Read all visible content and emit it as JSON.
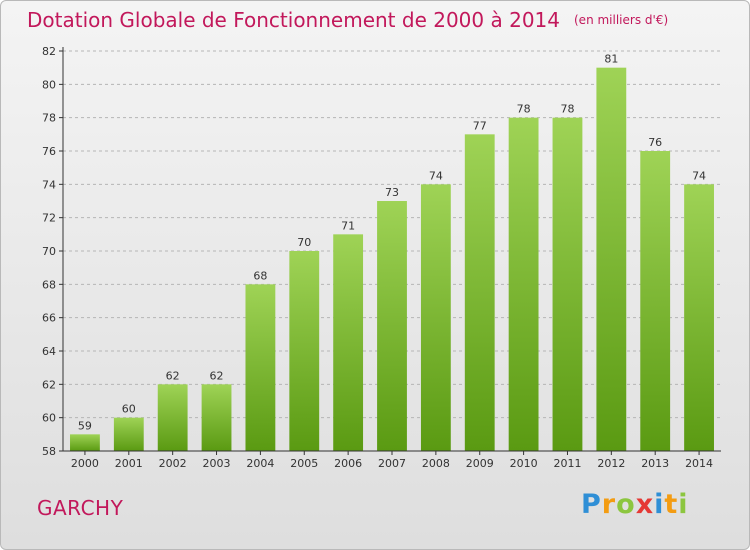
{
  "header": {
    "title": "Dotation Globale de Fonctionnement de 2000 à 2014",
    "subtitle": "(en milliers d'€)"
  },
  "footer": {
    "commune": "GARCHY",
    "brand": [
      "P",
      "r",
      "o",
      "x",
      "i",
      "t",
      "i"
    ]
  },
  "colors": {
    "title": "#c2185b",
    "bar_light": "#9fd356",
    "bar_dark": "#5a9a12",
    "axis": "#333333"
  },
  "chart_data": {
    "type": "bar",
    "categories": [
      "2000",
      "2001",
      "2002",
      "2003",
      "2004",
      "2005",
      "2006",
      "2007",
      "2008",
      "2009",
      "2010",
      "2011",
      "2012",
      "2013",
      "2014"
    ],
    "values": [
      59,
      60,
      62,
      62,
      68,
      70,
      71,
      73,
      74,
      77,
      78,
      78,
      81,
      76,
      74
    ],
    "ylim": [
      58,
      82
    ],
    "yticks": [
      58,
      60,
      62,
      64,
      66,
      68,
      70,
      72,
      74,
      76,
      78,
      80,
      82
    ],
    "grid": "horizontal dashed",
    "data_labels": true
  }
}
